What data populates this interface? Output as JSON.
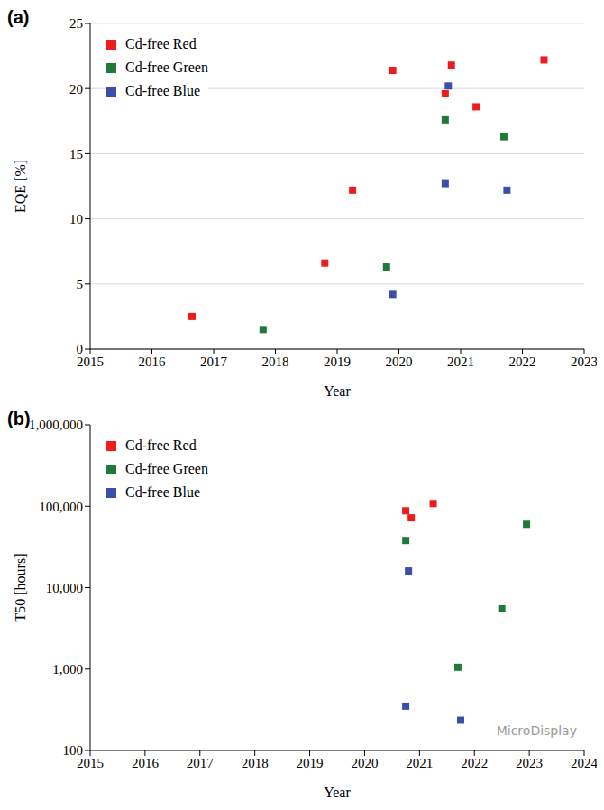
{
  "chart_data": [
    {
      "type": "scatter",
      "panel_label": "(a)",
      "x_label": "Year",
      "y_label": "EQE [%]",
      "xlim": [
        2015,
        2023
      ],
      "xticks": [
        2015,
        2016,
        2017,
        2018,
        2019,
        2020,
        2021,
        2022,
        2023
      ],
      "ylim": [
        0,
        25
      ],
      "yticks": [
        0,
        5,
        10,
        15,
        20,
        25
      ],
      "grid": true,
      "legend": "top-left",
      "marker": "square",
      "series": [
        {
          "name": "Cd-free Red",
          "color": "#ee1c1c",
          "x": [
            2016.65,
            2018.8,
            2019.25,
            2019.9,
            2020.75,
            2020.85,
            2021.25,
            2022.35
          ],
          "values": [
            2.5,
            6.6,
            12.2,
            21.4,
            19.6,
            21.8,
            18.6,
            22.2
          ]
        },
        {
          "name": "Cd-free Green",
          "color": "#1f7a3a",
          "x": [
            2017.8,
            2019.8,
            2020.75,
            2021.7
          ],
          "values": [
            1.5,
            6.3,
            17.6,
            16.3
          ]
        },
        {
          "name": "Cd-free Blue",
          "color": "#3b4ea8",
          "x": [
            2019.9,
            2020.75,
            2020.8,
            2021.75
          ],
          "values": [
            4.2,
            12.7,
            20.2,
            12.2
          ]
        }
      ]
    },
    {
      "type": "scatter",
      "panel_label": "(b)",
      "x_label": "Year",
      "y_label": "T50 [hours]",
      "xlim": [
        2015,
        2024
      ],
      "xticks": [
        2015,
        2016,
        2017,
        2018,
        2019,
        2020,
        2021,
        2022,
        2023,
        2024
      ],
      "ylim": [
        100,
        1000000
      ],
      "yticks": [
        100,
        {
          "value": 1000,
          "label": "1,000"
        },
        {
          "value": 10000,
          "label": "10,000"
        },
        {
          "value": 100000,
          "label": "100,000"
        },
        {
          "value": 1000000,
          "label": "1,000,000"
        }
      ],
      "log": "y",
      "grid": false,
      "legend": "top-left",
      "marker": "square",
      "annotations": [
        "MicroDisplay"
      ],
      "series": [
        {
          "name": "Cd-free Red",
          "color": "#ee1c1c",
          "x": [
            2020.75,
            2020.85,
            2021.25
          ],
          "values": [
            88000,
            72000,
            108000
          ]
        },
        {
          "name": "Cd-free Green",
          "color": "#1f7a3a",
          "x": [
            2020.75,
            2021.7,
            2022.5,
            2022.95
          ],
          "values": [
            38000,
            1050,
            5500,
            60000
          ]
        },
        {
          "name": "Cd-free Blue",
          "color": "#3b4ea8",
          "x": [
            2020.8,
            2020.75,
            2021.75
          ],
          "values": [
            16000,
            350,
            235
          ]
        }
      ]
    }
  ]
}
